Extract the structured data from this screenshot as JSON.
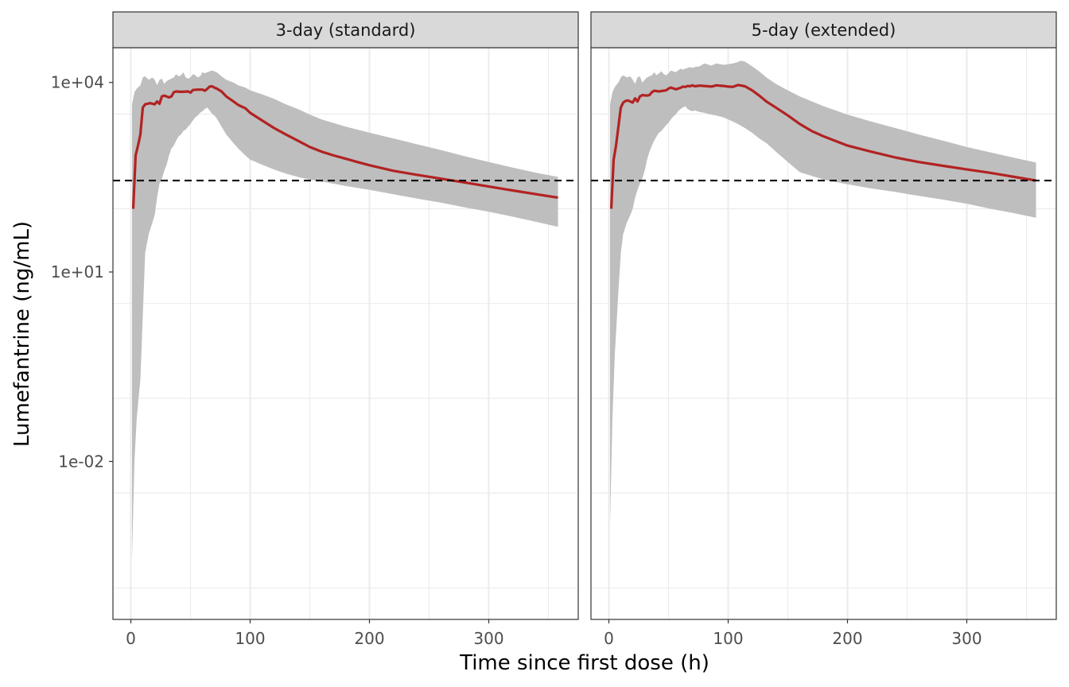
{
  "chart_data": {
    "type": "line",
    "xlabel": "Time since first dose (h)",
    "ylabel": "Lumefantrine (ng/mL)",
    "y_scale": "log10",
    "xlim": [
      -15,
      375
    ],
    "ylim_log10": [
      -4.5,
      4.55
    ],
    "x_ticks": [
      0,
      100,
      200,
      300
    ],
    "x_tick_labels": [
      "0",
      "100",
      "200",
      "300"
    ],
    "y_ticks_log10": [
      4,
      1,
      -2
    ],
    "y_tick_labels": [
      "1e+04",
      "1e+01",
      "1e-02"
    ],
    "reference_line": {
      "y": 280,
      "style": "dashed",
      "color": "#000000"
    },
    "colors": {
      "median_line": "#b22222",
      "ribbon": "#bebebe",
      "strip_fill": "#d9d9d9",
      "grid": "#ebebeb",
      "panel_border": "#333333"
    },
    "grid": true,
    "panels": [
      {
        "label": "3-day (standard)",
        "median": {
          "x": [
            2,
            4,
            6,
            8,
            10,
            12,
            14,
            16,
            20,
            22,
            24,
            26,
            28,
            32,
            34,
            36,
            38,
            42,
            48,
            50,
            52,
            56,
            60,
            62,
            64,
            66,
            68,
            70,
            72,
            76,
            80,
            86,
            90,
            96,
            100,
            110,
            120,
            130,
            140,
            150,
            160,
            170,
            180,
            190,
            200,
            220,
            240,
            260,
            280,
            300,
            320,
            340,
            358
          ],
          "y": [
            100,
            700,
            1000,
            1500,
            4000,
            4500,
            4600,
            4700,
            4500,
            5000,
            4600,
            6000,
            6200,
            5800,
            6000,
            7000,
            7200,
            7100,
            7200,
            6900,
            7600,
            7700,
            7700,
            7400,
            7900,
            8600,
            8700,
            8300,
            8000,
            7200,
            6000,
            5000,
            4400,
            3900,
            3300,
            2500,
            1900,
            1500,
            1200,
            950,
            800,
            700,
            620,
            550,
            490,
            400,
            345,
            300,
            260,
            225,
            195,
            170,
            150
          ]
        },
        "ribbon": {
          "x": [
            1,
            3,
            5,
            8,
            10,
            12,
            15,
            18,
            20,
            22,
            24,
            26,
            28,
            30,
            32,
            34,
            36,
            38,
            40,
            42,
            44,
            46,
            48,
            50,
            52,
            54,
            56,
            58,
            60,
            62,
            64,
            66,
            68,
            70,
            72,
            76,
            80,
            86,
            90,
            96,
            100,
            110,
            120,
            130,
            140,
            150,
            160,
            180,
            200,
            220,
            240,
            260,
            280,
            300,
            320,
            340,
            358
          ],
          "upper": [
            4500,
            7000,
            8000,
            9000,
            12000,
            12500,
            11000,
            12000,
            11000,
            9000,
            11000,
            11500,
            9500,
            10500,
            11000,
            11500,
            12000,
            13500,
            12500,
            13000,
            14500,
            12000,
            11500,
            12000,
            13500,
            13000,
            12000,
            12500,
            14500,
            14000,
            14500,
            15000,
            15500,
            15000,
            14500,
            12500,
            11000,
            10000,
            9000,
            8300,
            7500,
            6500,
            5500,
            4500,
            3800,
            3100,
            2600,
            2000,
            1600,
            1300,
            1050,
            850,
            680,
            550,
            450,
            370,
            320
          ],
          "lower": [
            0.0003,
            0.01,
            0.05,
            0.2,
            2,
            20,
            40,
            60,
            80,
            150,
            250,
            300,
            400,
            500,
            700,
            900,
            1000,
            1200,
            1400,
            1500,
            1700,
            1800,
            2000,
            2200,
            2500,
            2800,
            3000,
            3300,
            3500,
            3800,
            4000,
            3600,
            3200,
            3000,
            2700,
            2000,
            1500,
            1100,
            900,
            700,
            600,
            500,
            420,
            360,
            320,
            290,
            270,
            230,
            200,
            170,
            145,
            125,
            105,
            90,
            75,
            62,
            52
          ]
        }
      },
      {
        "label": "5-day (extended)",
        "median": {
          "x": [
            2,
            4,
            6,
            8,
            10,
            12,
            14,
            16,
            20,
            22,
            24,
            26,
            28,
            32,
            34,
            36,
            38,
            42,
            48,
            50,
            52,
            56,
            60,
            62,
            64,
            66,
            68,
            70,
            72,
            76,
            80,
            86,
            90,
            96,
            100,
            104,
            108,
            110,
            114,
            116,
            120,
            126,
            132,
            140,
            150,
            160,
            170,
            180,
            200,
            220,
            240,
            260,
            280,
            300,
            320,
            340,
            358
          ],
          "y": [
            100,
            600,
            1000,
            2000,
            4000,
            4800,
            5100,
            5200,
            4800,
            5600,
            5000,
            6000,
            6300,
            6200,
            6300,
            7000,
            7400,
            7200,
            7500,
            8000,
            8300,
            7800,
            8200,
            8600,
            8500,
            8800,
            8700,
            9000,
            8700,
            8900,
            8800,
            8600,
            9000,
            8800,
            8600,
            8500,
            9100,
            9000,
            8700,
            8300,
            7500,
            6200,
            5000,
            4000,
            3000,
            2200,
            1700,
            1400,
            1000,
            800,
            650,
            550,
            480,
            420,
            370,
            320,
            280
          ]
        },
        "ribbon": {
          "x": [
            1,
            3,
            5,
            8,
            10,
            12,
            15,
            18,
            20,
            22,
            24,
            26,
            28,
            30,
            32,
            34,
            36,
            38,
            40,
            42,
            44,
            46,
            48,
            50,
            52,
            54,
            56,
            58,
            60,
            62,
            64,
            66,
            68,
            70,
            72,
            76,
            80,
            86,
            90,
            96,
            100,
            104,
            108,
            110,
            114,
            120,
            126,
            132,
            140,
            150,
            160,
            180,
            200,
            220,
            240,
            260,
            280,
            300,
            320,
            340,
            358
          ],
          "upper": [
            4500,
            7000,
            8500,
            10000,
            12000,
            13000,
            12000,
            12500,
            11000,
            9500,
            12000,
            12500,
            10000,
            11000,
            12000,
            12500,
            13000,
            14500,
            13000,
            14000,
            15000,
            13500,
            13000,
            14000,
            15500,
            15000,
            14500,
            15500,
            16500,
            16000,
            16500,
            17000,
            17500,
            17000,
            17500,
            18000,
            20000,
            18500,
            20000,
            19000,
            19500,
            20000,
            21000,
            22000,
            21500,
            18000,
            15000,
            12000,
            9500,
            7500,
            6000,
            4200,
            3100,
            2400,
            1900,
            1500,
            1200,
            950,
            780,
            640,
            540
          ],
          "lower": [
            0.001,
            0.05,
            0.5,
            5,
            20,
            40,
            60,
            80,
            100,
            150,
            200,
            250,
            300,
            400,
            600,
            800,
            1000,
            1200,
            1400,
            1600,
            1700,
            1900,
            2100,
            2300,
            2600,
            2900,
            3100,
            3500,
            3800,
            4000,
            4200,
            3800,
            3600,
            3500,
            3600,
            3400,
            3300,
            3100,
            3000,
            2800,
            2600,
            2400,
            2200,
            2100,
            1900,
            1600,
            1300,
            1100,
            800,
            550,
            380,
            290,
            245,
            210,
            185,
            160,
            140,
            120,
            100,
            85,
            72
          ]
        }
      }
    ]
  }
}
